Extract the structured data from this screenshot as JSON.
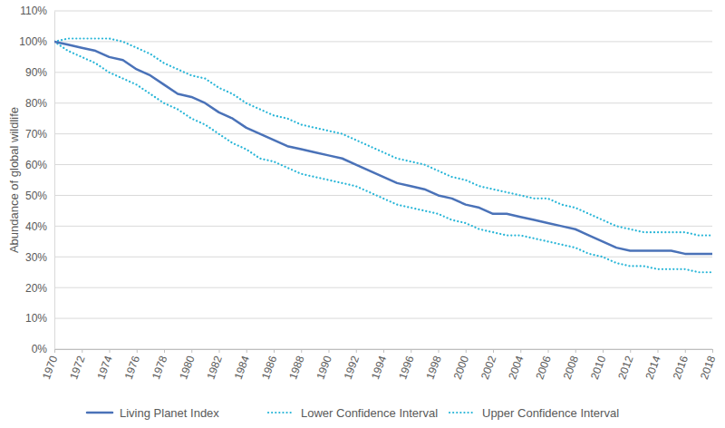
{
  "chart_data": {
    "type": "line",
    "y_label": "Abundance of global wildlife",
    "x": [
      1970,
      1971,
      1972,
      1973,
      1974,
      1975,
      1976,
      1977,
      1978,
      1979,
      1980,
      1981,
      1982,
      1983,
      1984,
      1985,
      1986,
      1987,
      1988,
      1989,
      1990,
      1991,
      1992,
      1993,
      1994,
      1995,
      1996,
      1997,
      1998,
      1999,
      2000,
      2001,
      2002,
      2003,
      2004,
      2005,
      2006,
      2007,
      2008,
      2009,
      2010,
      2011,
      2012,
      2013,
      2014,
      2015,
      2016,
      2017,
      2018
    ],
    "series": [
      {
        "name": "Living Planet Index",
        "color": "#4a72b8",
        "line_style": "solid",
        "values": [
          100,
          99,
          98,
          97,
          95,
          94,
          91,
          89,
          86,
          83,
          82,
          80,
          77,
          75,
          72,
          70,
          68,
          66,
          65,
          64,
          63,
          62,
          60,
          58,
          56,
          54,
          53,
          52,
          50,
          49,
          47,
          46,
          44,
          44,
          43,
          42,
          41,
          40,
          39,
          37,
          35,
          33,
          32,
          32,
          32,
          32,
          31,
          31,
          31
        ]
      },
      {
        "name": "Lower Confidence Interval",
        "color": "#29b6d8",
        "line_style": "dotted",
        "values": [
          100,
          97,
          95,
          93,
          90,
          88,
          86,
          83,
          80,
          78,
          75,
          73,
          70,
          67,
          65,
          62,
          61,
          59,
          57,
          56,
          55,
          54,
          53,
          51,
          49,
          47,
          46,
          45,
          44,
          42,
          41,
          39,
          38,
          37,
          37,
          36,
          35,
          34,
          33,
          31,
          30,
          28,
          27,
          27,
          26,
          26,
          26,
          25,
          25
        ]
      },
      {
        "name": "Upper Confidence Interval",
        "color": "#29b6d8",
        "line_style": "dotted",
        "values": [
          100,
          101,
          101,
          101,
          101,
          100,
          98,
          96,
          93,
          91,
          89,
          88,
          85,
          83,
          80,
          78,
          76,
          75,
          73,
          72,
          71,
          70,
          68,
          66,
          64,
          62,
          61,
          60,
          58,
          56,
          55,
          53,
          52,
          51,
          50,
          49,
          49,
          47,
          46,
          44,
          42,
          40,
          39,
          38,
          38,
          38,
          38,
          37,
          37
        ]
      }
    ],
    "xlim": [
      1970,
      2018
    ],
    "xticks": [
      1970,
      1972,
      1974,
      1976,
      1978,
      1980,
      1982,
      1984,
      1986,
      1988,
      1990,
      1992,
      1994,
      1996,
      1998,
      2000,
      2002,
      2004,
      2006,
      2008,
      2010,
      2012,
      2014,
      2016,
      2018
    ],
    "ylim": [
      0,
      110
    ],
    "yticks": [
      {
        "value": 0,
        "label": "0%"
      },
      {
        "value": 10,
        "label": "10%"
      },
      {
        "value": 20,
        "label": "20%"
      },
      {
        "value": 30,
        "label": "30%"
      },
      {
        "value": 40,
        "label": "40%"
      },
      {
        "value": 50,
        "label": "50%"
      },
      {
        "value": 60,
        "label": "60%"
      },
      {
        "value": 70,
        "label": "70%"
      },
      {
        "value": 80,
        "label": "80%"
      },
      {
        "value": 90,
        "label": "90%"
      },
      {
        "value": 100,
        "label": "100%"
      },
      {
        "value": 110,
        "label": "110%"
      }
    ],
    "grid": true,
    "legend": "bottom"
  }
}
